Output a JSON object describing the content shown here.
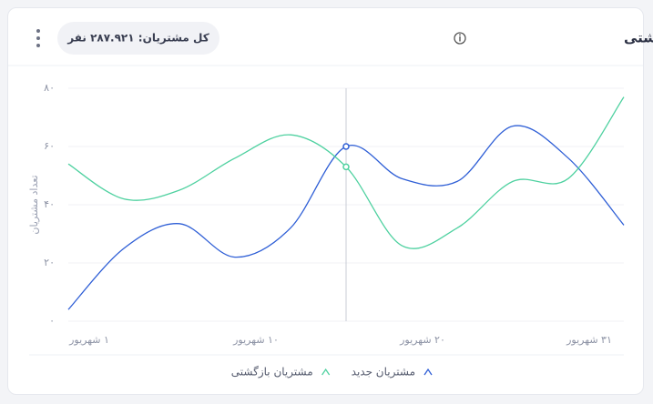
{
  "chart_data": {
    "type": "line",
    "title": "مشتریان جدید / بازگشتی",
    "badge": "کل مشتریان: ۲۸۷.۹۲۱ نفر",
    "ylabel": "تعداد مشتریان",
    "categories": [
      "۱ شهریور",
      null,
      null,
      "۱۰ شهریور",
      null,
      null,
      "۲۰ شهریور",
      null,
      null,
      "۳۱ شهریور",
      null
    ],
    "series": [
      {
        "name": "مشتریان جدید",
        "color": "#2f5fd6",
        "values": [
          4,
          25,
          33.5,
          22,
          32,
          60,
          49,
          48,
          67,
          56,
          33
        ]
      },
      {
        "name": "مشتریان بازگشتی",
        "color": "#4fd1a0",
        "values": [
          54,
          42,
          45,
          56,
          64,
          53,
          26,
          32,
          48,
          49,
          77
        ]
      }
    ],
    "ylim": [
      0,
      80
    ],
    "yticks": [
      {
        "value": 0,
        "label": "۰"
      },
      {
        "value": 20,
        "label": "۲۰"
      },
      {
        "value": 40,
        "label": "۴۰"
      },
      {
        "value": 60,
        "label": "۶۰"
      },
      {
        "value": 80,
        "label": "۸۰"
      }
    ],
    "grid": true,
    "hover_index": 5
  }
}
